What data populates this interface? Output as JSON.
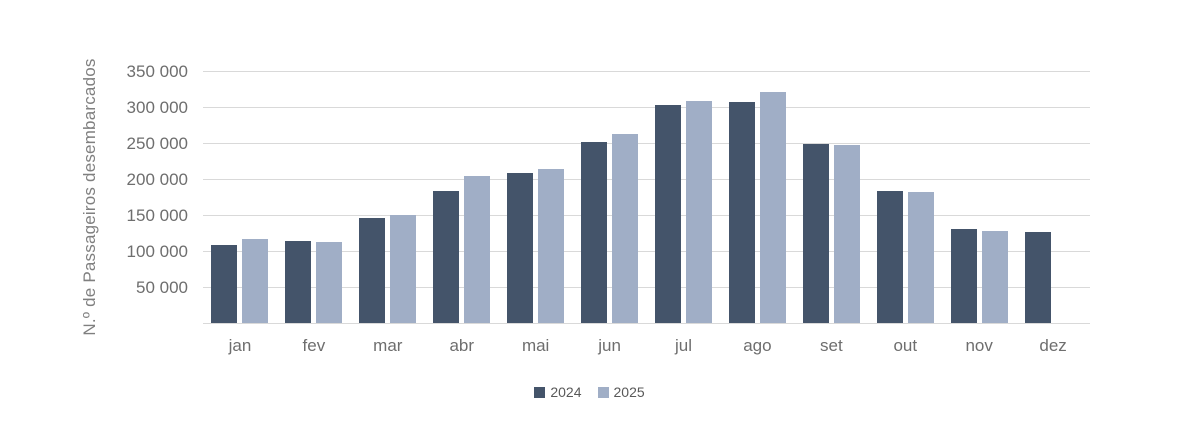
{
  "chart_data": {
    "type": "bar",
    "title": "",
    "ylabel": "N.º de Passageiros desembarcados",
    "xlabel": "",
    "categories": [
      "jan",
      "fev",
      "mar",
      "abr",
      "mai",
      "jun",
      "jul",
      "ago",
      "set",
      "out",
      "nov",
      "dez"
    ],
    "series": [
      {
        "name": "2024",
        "color": "#44546A",
        "values": [
          108000,
          114000,
          146000,
          183000,
          209000,
          252000,
          303000,
          307000,
          248000,
          184000,
          131000,
          127000
        ]
      },
      {
        "name": "2025",
        "color": "#A0AEC6",
        "values": [
          116000,
          113000,
          150000,
          204000,
          214000,
          262000,
          309000,
          321000,
          247000,
          182000,
          128000,
          null
        ]
      }
    ],
    "ylim": [
      0,
      350000
    ],
    "ytick_step": 50000,
    "ytick_labels": [
      "50 000",
      "100 000",
      "150 000",
      "200 000",
      "250 000",
      "300 000",
      "350 000"
    ],
    "grid": true,
    "gridline_color": "#D9D9D9",
    "legend_position": "bottom"
  },
  "legend": {
    "items": [
      {
        "label": "2024",
        "color": "#44546A"
      },
      {
        "label": "2025",
        "color": "#A0AEC6"
      }
    ]
  }
}
